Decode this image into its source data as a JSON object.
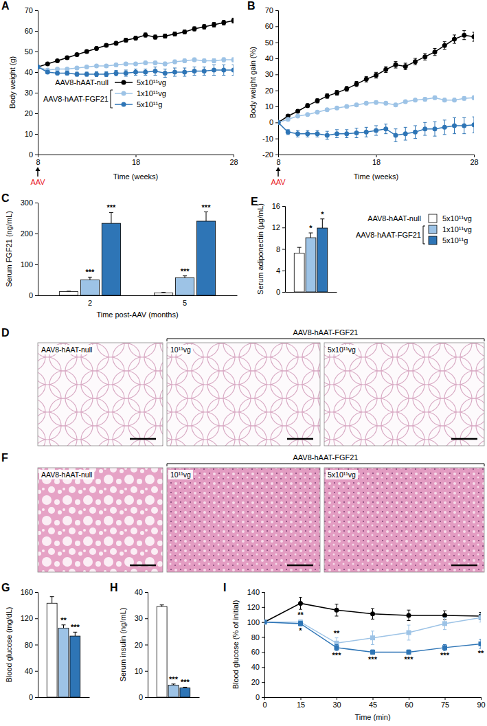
{
  "chart_data": [
    {
      "type": "line",
      "title": "A",
      "x_label": "Time (weeks)",
      "y_label": "Body weight (g)",
      "xlim": [
        8,
        28
      ],
      "xticks": [
        8,
        18,
        28
      ],
      "ylim": [
        0,
        70
      ],
      "yticks": [
        0,
        10,
        20,
        30,
        40,
        50,
        60,
        70
      ],
      "line_style": "solid",
      "legend": "lower left",
      "legend_groups": [
        "AAV8-hAAT-null",
        "AAV8-hAAT-FGF21"
      ],
      "annotations": [
        {
          "text": "AAV",
          "x": 8,
          "color": "#e8131b"
        }
      ],
      "x": [
        8,
        9,
        10,
        11,
        12,
        13,
        14,
        15,
        16,
        17,
        18,
        19,
        20,
        21,
        22,
        23,
        24,
        25,
        26,
        27,
        28
      ],
      "series": [
        {
          "name": "5x10¹¹vg",
          "color": "#000000",
          "marker": "circle",
          "values": [
            42.5,
            44,
            45.5,
            47,
            48.5,
            50,
            51.5,
            53,
            54,
            55.5,
            56.5,
            58,
            57,
            57.5,
            58.5,
            59.5,
            61,
            62,
            63,
            64,
            65
          ],
          "errors": [
            0.5,
            0.6,
            0.6,
            0.7,
            0.7,
            0.8,
            0.8,
            0.8,
            0.9,
            0.9,
            0.9,
            1,
            1,
            1,
            1,
            1,
            1,
            1.1,
            1.1,
            1.1,
            1.2
          ]
        },
        {
          "name": "1x10¹¹vg",
          "color": "#9dc3e6",
          "marker": "circle",
          "values": [
            42.5,
            41,
            41.5,
            41.5,
            42,
            42.5,
            43,
            43,
            43.5,
            44,
            44,
            44.5,
            44.5,
            44,
            45,
            45.5,
            46,
            45.5,
            45.5,
            46,
            46
          ],
          "errors": [
            0.5,
            0.6,
            0.6,
            0.6,
            0.7,
            0.7,
            0.7,
            0.7,
            0.8,
            0.8,
            0.8,
            0.8,
            0.8,
            0.9,
            0.9,
            0.9,
            0.9,
            0.9,
            1,
            1,
            1
          ]
        },
        {
          "name": "5x10¹¹g",
          "color": "#2e75b6",
          "marker": "circle",
          "values": [
            42.5,
            40,
            39.5,
            39.5,
            39,
            39,
            39,
            39,
            39.5,
            39.5,
            40,
            40,
            40.5,
            39.5,
            40,
            40,
            40.5,
            40.5,
            41,
            41,
            41
          ],
          "errors": [
            0.5,
            0.8,
            0.8,
            0.9,
            1,
            1,
            1.2,
            1.2,
            1.3,
            1.5,
            1.5,
            1.5,
            2,
            2,
            2,
            2,
            2,
            2,
            2.5,
            2.5,
            2.5
          ]
        }
      ]
    },
    {
      "type": "line",
      "title": "B",
      "x_label": "Time (weeks)",
      "y_label": "Body weight gain (%)",
      "xlim": [
        8,
        28
      ],
      "xticks": [
        8,
        18,
        28
      ],
      "ylim": [
        -20,
        70
      ],
      "yticks": [
        -20,
        -10,
        0,
        10,
        20,
        30,
        40,
        50,
        60,
        70
      ],
      "line_style": "solid",
      "annotations": [
        {
          "text": "AAV",
          "x": 8,
          "color": "#e8131b"
        }
      ],
      "x": [
        8,
        9,
        10,
        11,
        12,
        13,
        14,
        15,
        16,
        17,
        18,
        19,
        20,
        21,
        22,
        23,
        24,
        25,
        26,
        27,
        28
      ],
      "series": [
        {
          "color": "#000000",
          "marker": "circle",
          "values": [
            0,
            4,
            7,
            10.5,
            13.5,
            16.5,
            18.5,
            21,
            24,
            27,
            29.5,
            33,
            36,
            35,
            38,
            41,
            44,
            48,
            52,
            54.5,
            53.5
          ],
          "errors": [
            0,
            1,
            1,
            1.2,
            1.3,
            1.4,
            1.5,
            1.5,
            1.6,
            1.7,
            1.8,
            1.8,
            2,
            2,
            2,
            2,
            2.2,
            2.4,
            2.6,
            2.8,
            2.8
          ]
        },
        {
          "color": "#9dc3e6",
          "marker": "circle",
          "values": [
            0,
            2,
            4,
            5,
            6.5,
            8,
            9,
            10,
            11,
            12,
            12.5,
            12,
            11,
            13,
            14,
            14.5,
            15.5,
            14,
            14,
            15,
            15.5
          ],
          "errors": [
            0,
            0.6,
            0.7,
            0.8,
            0.8,
            0.9,
            0.9,
            1,
            1,
            1,
            1,
            1,
            1,
            1,
            1,
            1.1,
            1.1,
            1.1,
            1.1,
            1.1,
            1.2
          ]
        },
        {
          "color": "#2e75b6",
          "marker": "circle",
          "values": [
            0,
            -6,
            -7,
            -7,
            -7,
            -8,
            -7,
            -7,
            -6.5,
            -6,
            -5,
            -4,
            -8,
            -7,
            -6,
            -4,
            -4,
            -3,
            -2,
            -2,
            -1.5
          ],
          "errors": [
            0,
            1.5,
            2,
            2,
            2,
            2.5,
            2.5,
            2.5,
            3,
            3,
            3,
            3,
            4,
            4,
            4,
            4,
            4.5,
            4.5,
            5,
            5,
            5
          ]
        }
      ]
    },
    {
      "type": "bar",
      "title": "C",
      "x_label": "Time post-AAV (months)",
      "y_label": "Serum FGF21 (ng/mL)",
      "categories": [
        "2",
        "5"
      ],
      "ylim": [
        0,
        300
      ],
      "yticks": [
        0,
        100,
        200,
        300
      ],
      "series": [
        {
          "color": "#ffffff",
          "values": [
            12,
            8
          ],
          "errors": [
            1.5,
            1.5
          ]
        },
        {
          "color": "#9dc3e6",
          "values": [
            50,
            57
          ],
          "errors": [
            9,
            6
          ],
          "stars": [
            "***",
            "***"
          ]
        },
        {
          "color": "#2e75b6",
          "values": [
            233,
            240
          ],
          "errors": [
            35,
            30
          ],
          "stars": [
            "***",
            "***"
          ]
        }
      ]
    },
    {
      "type": "bar",
      "title": "E",
      "y_label": "Serum adiponectin (µg/mL)",
      "categories": [
        null
      ],
      "ylim": [
        0,
        16
      ],
      "yticks": [
        0,
        4,
        8,
        12,
        16
      ],
      "legend": "right",
      "legend_groups": [
        "AAV8-hAAT-null",
        "AAV8-hAAT-FGF21"
      ],
      "series": [
        {
          "name": "5x10¹¹vg",
          "color": "#ffffff",
          "values": [
            7.2
          ],
          "errors": [
            1.1
          ]
        },
        {
          "name": "1x10¹¹vg",
          "color": "#9dc3e6",
          "values": [
            10.1
          ],
          "errors": [
            0.9
          ],
          "stars": [
            "*"
          ]
        },
        {
          "name": "5x10¹¹g",
          "color": "#2e75b6",
          "values": [
            11.9
          ],
          "errors": [
            1.7
          ],
          "stars": [
            "*"
          ]
        }
      ]
    },
    {
      "type": "bar",
      "title": "G",
      "y_label": "Blood glucose (mg/dL)",
      "categories": [
        null
      ],
      "ylim": [
        0,
        160
      ],
      "yticks": [
        0,
        40,
        80,
        120,
        160
      ],
      "series": [
        {
          "color": "#ffffff",
          "values": [
            143
          ],
          "errors": [
            10
          ]
        },
        {
          "color": "#9dc3e6",
          "values": [
            105
          ],
          "errors": [
            5
          ],
          "stars": [
            "**"
          ]
        },
        {
          "color": "#2e75b6",
          "values": [
            93
          ],
          "errors": [
            6
          ],
          "stars": [
            "***"
          ]
        }
      ]
    },
    {
      "type": "bar",
      "title": "H",
      "y_label": "Serum insulin (ng/mL)",
      "categories": [
        null
      ],
      "ylim": [
        0,
        40
      ],
      "yticks": [
        0,
        10,
        20,
        30,
        40
      ],
      "series": [
        {
          "color": "#ffffff",
          "values": [
            34.5
          ],
          "errors": [
            0.6
          ]
        },
        {
          "color": "#9dc3e6",
          "values": [
            4.6
          ],
          "errors": [
            0.4
          ],
          "stars": [
            "***"
          ]
        },
        {
          "color": "#2e75b6",
          "values": [
            3.5
          ],
          "errors": [
            0.3
          ],
          "stars": [
            "***"
          ]
        }
      ]
    },
    {
      "type": "line",
      "title": "I",
      "x_label": "Time (min)",
      "y_label": "Blood glucose (% of initial)",
      "xlim": [
        0,
        90
      ],
      "xticks": [
        0,
        15,
        30,
        45,
        60,
        75,
        90
      ],
      "ylim": [
        0,
        140
      ],
      "yticks": [
        0,
        20,
        40,
        60,
        80,
        100,
        120,
        140
      ],
      "line_style": "solid",
      "x": [
        0,
        15,
        30,
        45,
        60,
        75,
        90
      ],
      "series": [
        {
          "color": "#000000",
          "marker": "circle",
          "values": [
            100,
            125,
            116,
            111,
            109,
            109,
            108
          ],
          "errors": [
            0,
            8,
            8,
            7,
            7,
            6,
            5
          ]
        },
        {
          "color": "#9dc3e6",
          "marker": "square",
          "values": [
            100,
            100,
            72,
            79,
            86,
            98,
            106
          ],
          "errors": [
            0,
            3,
            7,
            9,
            10,
            8,
            6
          ],
          "stars": [
            null,
            "**",
            "**",
            null,
            null,
            null,
            null
          ]
        },
        {
          "color": "#2e75b6",
          "marker": "square",
          "values": [
            100,
            98,
            66,
            60,
            60,
            66,
            71
          ],
          "errors": [
            0,
            3,
            4,
            3,
            3,
            4,
            6
          ],
          "stars": [
            null,
            "*",
            "***",
            "***",
            "***",
            "***",
            "**"
          ]
        }
      ]
    }
  ],
  "panels": [
    {
      "title": "D",
      "header": "AAV8-hAAT-FGF21",
      "labels": [
        "AAV8-hAAT-null",
        "10¹¹vg",
        "5x10¹¹vg"
      ]
    },
    {
      "title": "F",
      "header": "AAV8-hAAT-FGF21",
      "labels": [
        "AAV8-hAAT-null",
        "10¹¹vg",
        "5x10¹¹vg"
      ]
    }
  ]
}
